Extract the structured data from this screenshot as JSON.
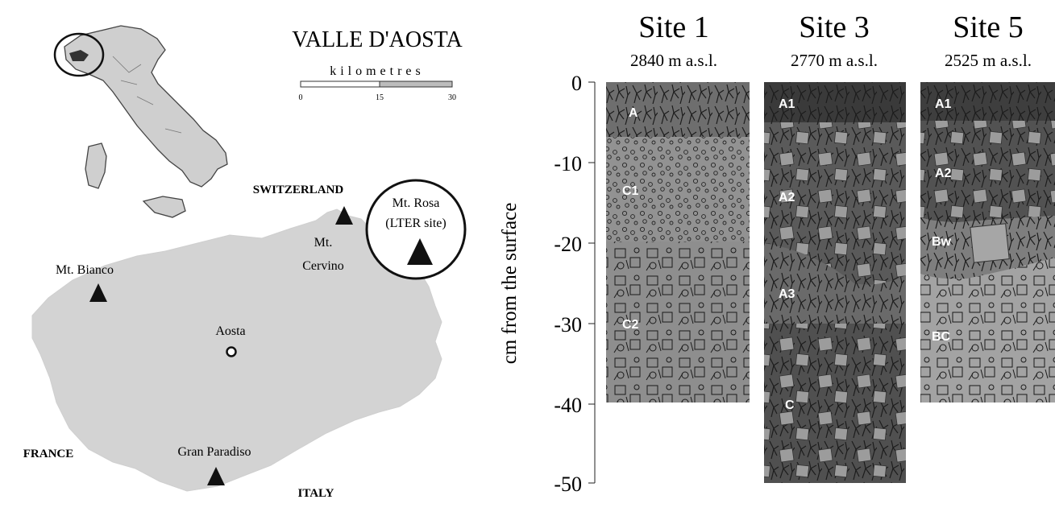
{
  "map": {
    "title": "VALLE D'AOSTA",
    "scale": {
      "unit_label": "kilometres",
      "ticks": [
        "0",
        "15",
        "30"
      ]
    },
    "countries": {
      "switzerland": "SWITZERLAND",
      "france": "FRANCE",
      "italy": "ITALY"
    },
    "mountains": [
      {
        "id": "bianco",
        "lines": [
          "Mt. Bianco"
        ]
      },
      {
        "id": "cervino",
        "lines": [
          "Mt.",
          "Cervino"
        ]
      },
      {
        "id": "rosa",
        "lines": [
          "Mt. Rosa",
          "(LTER site)"
        ]
      },
      {
        "id": "paradiso",
        "lines": [
          "Gran Paradiso"
        ]
      }
    ],
    "city": "Aosta"
  },
  "profiles": {
    "y_axis": {
      "label": "cm from the surface",
      "ticks": [
        "0",
        "-10",
        "-20",
        "-30",
        "-40",
        "-50"
      ]
    },
    "sites": [
      {
        "name": "Site 1",
        "elevation": "2840 m a.s.l.",
        "depth_cm": 40,
        "horizons": [
          {
            "label": "A"
          },
          {
            "label": "C1"
          },
          {
            "label": "C2"
          }
        ]
      },
      {
        "name": "Site 3",
        "elevation": "2770 m a.s.l.",
        "depth_cm": 50,
        "horizons": [
          {
            "label": "A1"
          },
          {
            "label": "A2"
          },
          {
            "label": "A3"
          },
          {
            "label": "C"
          }
        ]
      },
      {
        "name": "Site 5",
        "elevation": "2525 m a.s.l.",
        "depth_cm": 40,
        "horizons": [
          {
            "label": "A1"
          },
          {
            "label": "A2"
          },
          {
            "label": "Bw"
          },
          {
            "label": "BC"
          }
        ]
      }
    ]
  }
}
